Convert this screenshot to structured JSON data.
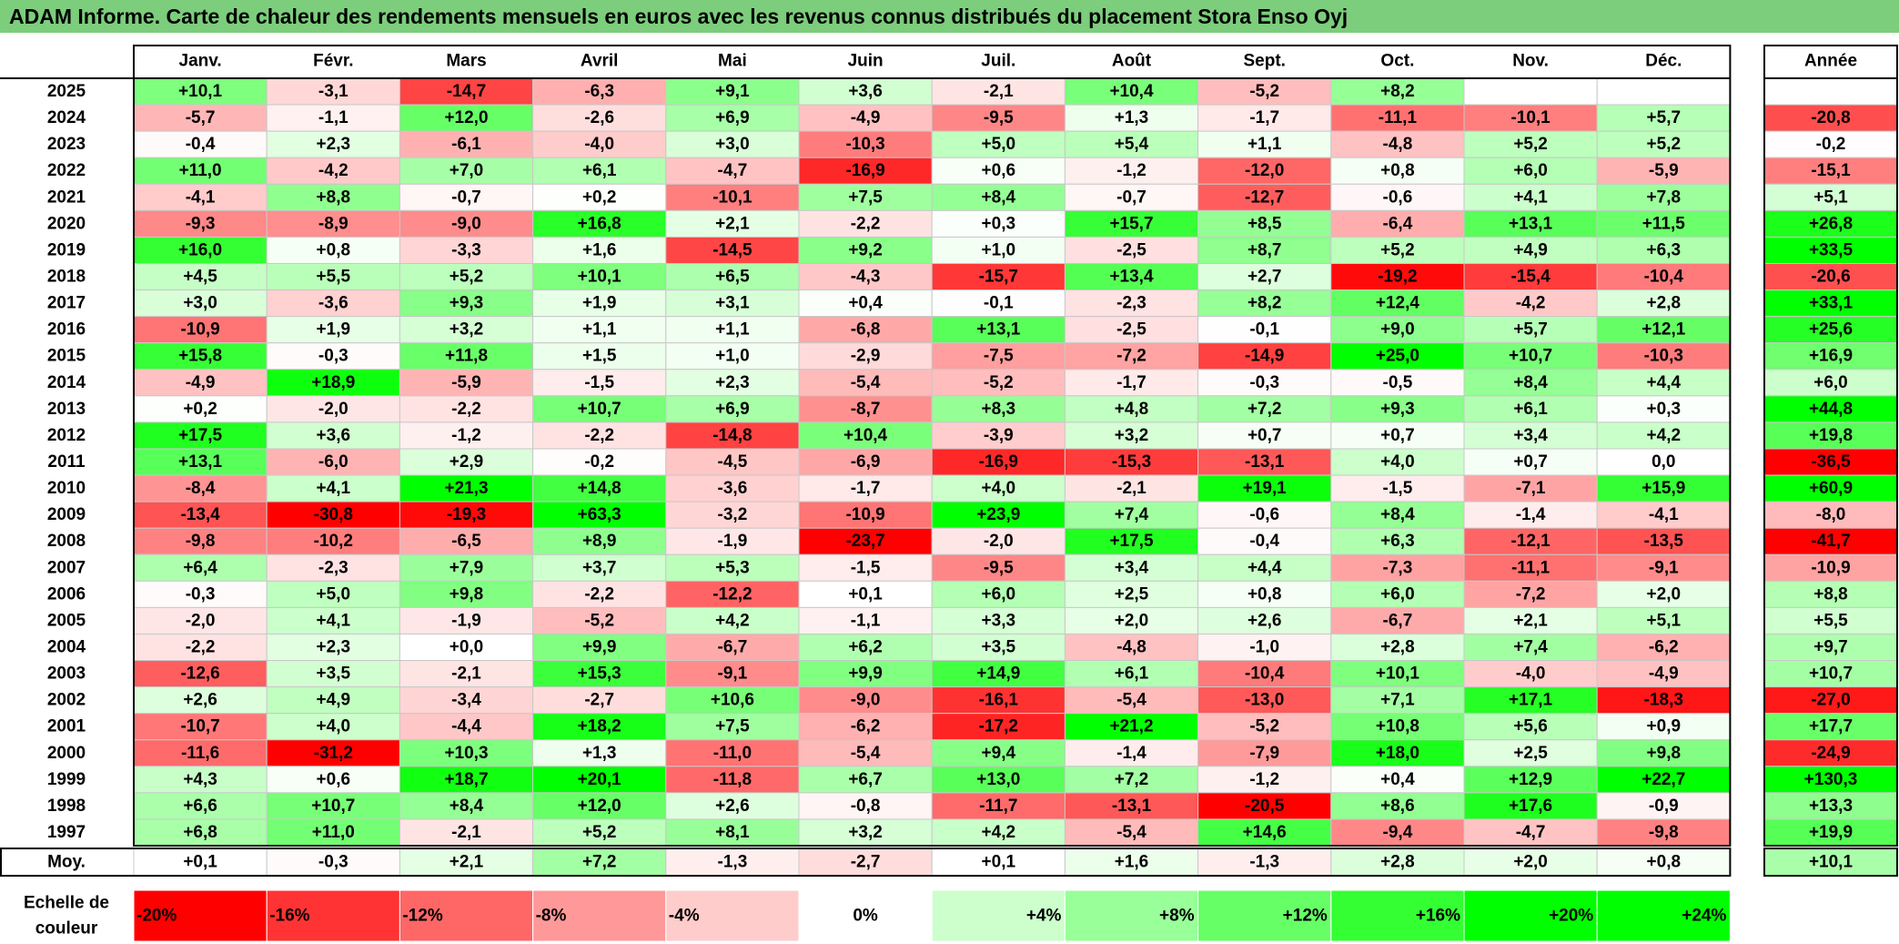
{
  "title": "ADAM Informe. Carte de chaleur des rendements mensuels en euros avec les revenus connus distribués du placement Stora Enso Oyj",
  "chart_data": {
    "type": "heatmap",
    "title": "ADAM Informe. Carte de chaleur des rendements mensuels en euros avec les revenus connus distribués du placement Stora Enso Oyj",
    "columns": [
      "Janv.",
      "Févr.",
      "Mars",
      "Avril",
      "Mai",
      "Juin",
      "Juil.",
      "Août",
      "Sept.",
      "Oct.",
      "Nov.",
      "Déc."
    ],
    "year_header": "Année",
    "rows": [
      {
        "year": "2025",
        "values": [
          "+10,1",
          "-3,1",
          "-14,7",
          "-6,3",
          "+9,1",
          "+3,6",
          "-2,1",
          "+10,4",
          "-5,2",
          "+8,2",
          "",
          ""
        ],
        "annual": ""
      },
      {
        "year": "2024",
        "values": [
          "-5,7",
          "-1,1",
          "+12,0",
          "-2,6",
          "+6,9",
          "-4,9",
          "-9,5",
          "+1,3",
          "-1,7",
          "-11,1",
          "-10,1",
          "+5,7"
        ],
        "annual": "-20,8"
      },
      {
        "year": "2023",
        "values": [
          "-0,4",
          "+2,3",
          "-6,1",
          "-4,0",
          "+3,0",
          "-10,3",
          "+5,0",
          "+5,4",
          "+1,1",
          "-4,8",
          "+5,2",
          "+5,2"
        ],
        "annual": "-0,2"
      },
      {
        "year": "2022",
        "values": [
          "+11,0",
          "-4,2",
          "+7,0",
          "+6,1",
          "-4,7",
          "-16,9",
          "+0,6",
          "-1,2",
          "-12,0",
          "+0,8",
          "+6,0",
          "-5,9"
        ],
        "annual": "-15,1"
      },
      {
        "year": "2021",
        "values": [
          "-4,1",
          "+8,8",
          "-0,7",
          "+0,2",
          "-10,1",
          "+7,5",
          "+8,4",
          "-0,7",
          "-12,7",
          "-0,6",
          "+4,1",
          "+7,8"
        ],
        "annual": "+5,1"
      },
      {
        "year": "2020",
        "values": [
          "-9,3",
          "-8,9",
          "-9,0",
          "+16,8",
          "+2,1",
          "-2,2",
          "+0,3",
          "+15,7",
          "+8,5",
          "-6,4",
          "+13,1",
          "+11,5"
        ],
        "annual": "+26,8"
      },
      {
        "year": "2019",
        "values": [
          "+16,0",
          "+0,8",
          "-3,3",
          "+1,6",
          "-14,5",
          "+9,2",
          "+1,0",
          "-2,5",
          "+8,7",
          "+5,2",
          "+4,9",
          "+6,3"
        ],
        "annual": "+33,5"
      },
      {
        "year": "2018",
        "values": [
          "+4,5",
          "+5,5",
          "+5,2",
          "+10,1",
          "+6,5",
          "-4,3",
          "-15,7",
          "+13,4",
          "+2,7",
          "-19,2",
          "-15,4",
          "-10,4"
        ],
        "annual": "-20,6"
      },
      {
        "year": "2017",
        "values": [
          "+3,0",
          "-3,6",
          "+9,3",
          "+1,9",
          "+3,1",
          "+0,4",
          "-0,1",
          "-2,3",
          "+8,2",
          "+12,4",
          "-4,2",
          "+2,8"
        ],
        "annual": "+33,1"
      },
      {
        "year": "2016",
        "values": [
          "-10,9",
          "+1,9",
          "+3,2",
          "+1,1",
          "+1,1",
          "-6,8",
          "+13,1",
          "-2,5",
          "-0,1",
          "+9,0",
          "+5,7",
          "+12,1"
        ],
        "annual": "+25,6"
      },
      {
        "year": "2015",
        "values": [
          "+15,8",
          "-0,3",
          "+11,8",
          "+1,5",
          "+1,0",
          "-2,9",
          "-7,5",
          "-7,2",
          "-14,9",
          "+25,0",
          "+10,7",
          "-10,3"
        ],
        "annual": "+16,9"
      },
      {
        "year": "2014",
        "values": [
          "-4,9",
          "+18,9",
          "-5,9",
          "-1,5",
          "+2,3",
          "-5,4",
          "-5,2",
          "-1,7",
          "-0,3",
          "-0,5",
          "+8,4",
          "+4,4"
        ],
        "annual": "+6,0"
      },
      {
        "year": "2013",
        "values": [
          "+0,2",
          "-2,0",
          "-2,2",
          "+10,7",
          "+6,9",
          "-8,7",
          "+8,3",
          "+4,8",
          "+7,2",
          "+9,3",
          "+6,1",
          "+0,3"
        ],
        "annual": "+44,8"
      },
      {
        "year": "2012",
        "values": [
          "+17,5",
          "+3,6",
          "-1,2",
          "-2,2",
          "-14,8",
          "+10,4",
          "-3,9",
          "+3,2",
          "+0,7",
          "+0,7",
          "+3,4",
          "+4,2"
        ],
        "annual": "+19,8"
      },
      {
        "year": "2011",
        "values": [
          "+13,1",
          "-6,0",
          "+2,9",
          "-0,2",
          "-4,5",
          "-6,9",
          "-16,9",
          "-15,3",
          "-13,1",
          "+4,0",
          "+0,7",
          "0,0"
        ],
        "annual": "-36,5"
      },
      {
        "year": "2010",
        "values": [
          "-8,4",
          "+4,1",
          "+21,3",
          "+14,8",
          "-3,6",
          "-1,7",
          "+4,0",
          "-2,1",
          "+19,1",
          "-1,5",
          "-7,1",
          "+15,9"
        ],
        "annual": "+60,9"
      },
      {
        "year": "2009",
        "values": [
          "-13,4",
          "-30,8",
          "-19,3",
          "+63,3",
          "-3,2",
          "-10,9",
          "+23,9",
          "+7,4",
          "-0,6",
          "+8,4",
          "-1,4",
          "-4,1"
        ],
        "annual": "-8,0"
      },
      {
        "year": "2008",
        "values": [
          "-9,8",
          "-10,2",
          "-6,5",
          "+8,9",
          "-1,9",
          "-23,7",
          "-2,0",
          "+17,5",
          "-0,4",
          "+6,3",
          "-12,1",
          "-13,5"
        ],
        "annual": "-41,7"
      },
      {
        "year": "2007",
        "values": [
          "+6,4",
          "-2,3",
          "+7,9",
          "+3,7",
          "+5,3",
          "-1,5",
          "-9,5",
          "+3,4",
          "+4,4",
          "-7,3",
          "-11,1",
          "-9,1"
        ],
        "annual": "-10,9"
      },
      {
        "year": "2006",
        "values": [
          "-0,3",
          "+5,0",
          "+9,8",
          "-2,2",
          "-12,2",
          "+0,1",
          "+6,0",
          "+2,5",
          "+0,8",
          "+6,0",
          "-7,2",
          "+2,0"
        ],
        "annual": "+8,8"
      },
      {
        "year": "2005",
        "values": [
          "-2,0",
          "+4,1",
          "-1,9",
          "-5,2",
          "+4,2",
          "-1,1",
          "+3,3",
          "+2,0",
          "+2,6",
          "-6,7",
          "+2,1",
          "+5,1"
        ],
        "annual": "+5,5"
      },
      {
        "year": "2004",
        "values": [
          "-2,2",
          "+2,3",
          "+0,0",
          "+9,9",
          "-6,7",
          "+6,2",
          "+3,5",
          "-4,8",
          "-1,0",
          "+2,8",
          "+7,4",
          "-6,2"
        ],
        "annual": "+9,7"
      },
      {
        "year": "2003",
        "values": [
          "-12,6",
          "+3,5",
          "-2,1",
          "+15,3",
          "-9,1",
          "+9,9",
          "+14,9",
          "+6,1",
          "-10,4",
          "+10,1",
          "-4,0",
          "-4,9"
        ],
        "annual": "+10,7"
      },
      {
        "year": "2002",
        "values": [
          "+2,6",
          "+4,9",
          "-3,4",
          "-2,7",
          "+10,6",
          "-9,0",
          "-16,1",
          "-5,4",
          "-13,0",
          "+7,1",
          "+17,1",
          "-18,3"
        ],
        "annual": "-27,0"
      },
      {
        "year": "2001",
        "values": [
          "-10,7",
          "+4,0",
          "-4,4",
          "+18,2",
          "+7,5",
          "-6,2",
          "-17,2",
          "+21,2",
          "-5,2",
          "+10,8",
          "+5,6",
          "+0,9"
        ],
        "annual": "+17,7"
      },
      {
        "year": "2000",
        "values": [
          "-11,6",
          "-31,2",
          "+10,3",
          "+1,3",
          "-11,0",
          "-5,4",
          "+9,4",
          "-1,4",
          "-7,9",
          "+18,0",
          "+2,5",
          "+9,8"
        ],
        "annual": "-24,9"
      },
      {
        "year": "1999",
        "values": [
          "+4,3",
          "+0,6",
          "+18,7",
          "+20,1",
          "-11,8",
          "+6,7",
          "+13,0",
          "+7,2",
          "-1,2",
          "+0,4",
          "+12,9",
          "+22,7"
        ],
        "annual": "+130,3"
      },
      {
        "year": "1998",
        "values": [
          "+6,6",
          "+10,7",
          "+8,4",
          "+12,0",
          "+2,6",
          "-0,8",
          "-11,7",
          "-13,1",
          "-20,5",
          "+8,6",
          "+17,6",
          "-0,9"
        ],
        "annual": "+13,3"
      },
      {
        "year": "1997",
        "values": [
          "+6,8",
          "+11,0",
          "-2,1",
          "+5,2",
          "+8,1",
          "+3,2",
          "+4,2",
          "-5,4",
          "+14,6",
          "-9,4",
          "-4,7",
          "-9,8"
        ],
        "annual": "+19,9"
      }
    ],
    "average_row": {
      "label": "Moy.",
      "values": [
        "+0,1",
        "-0,3",
        "+2,1",
        "+7,2",
        "-1,3",
        "-2,7",
        "+0,1",
        "+1,6",
        "-1,3",
        "+2,8",
        "+2,0",
        "+0,8"
      ],
      "annual": "+10,1"
    },
    "color_scale": {
      "label_line1": "Echelle de",
      "label_line2": "couleur",
      "stops": [
        "-20%",
        "-16%",
        "-12%",
        "-8%",
        "-4%",
        "0%",
        "+4%",
        "+8%",
        "+12%",
        "+16%",
        "+20%",
        "+24%"
      ],
      "stop_values": [
        -20,
        -16,
        -12,
        -8,
        -4,
        0,
        4,
        8,
        12,
        16,
        20,
        24
      ]
    }
  }
}
